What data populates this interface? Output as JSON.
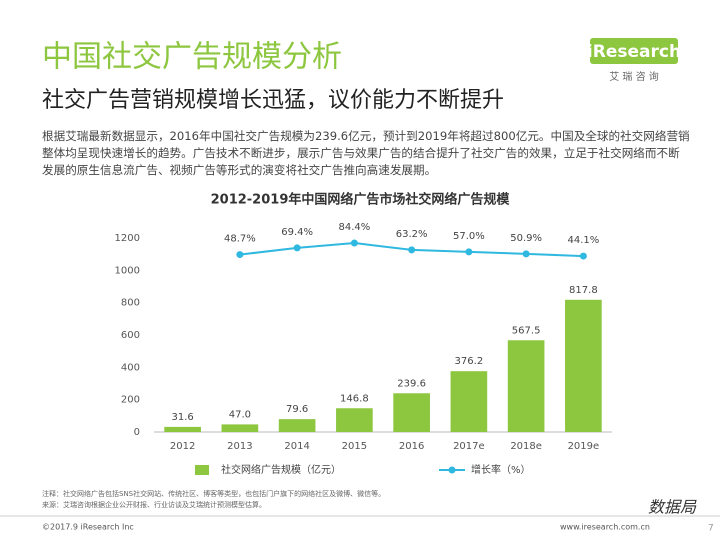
{
  "header": {
    "title": "中国社交广告规模分析",
    "subtitle": "社交广告营销规模增长迅猛，议价能力不断提升"
  },
  "logo": {
    "brand": "iResearch",
    "tagline": "艾 瑞 咨 询"
  },
  "body": "根据艾瑞最新数据显示，2016年中国社交广告规模为239.6亿元，预计到2019年将超过800亿元。中国及全球的社交网络营销整体均呈现快速增长的趋势。广告技术不断进步，展示广告与效果广告的结合提升了社交广告的效果，立足于社交网络而不断发展的原生信息流广告、视频广告等形式的演变将社交广告推向高速发展期。",
  "chart_data": {
    "type": "bar",
    "title": "2012-2019年中国网络广告市场社交网络广告规模",
    "categories": [
      "2012",
      "2013",
      "2014",
      "2015",
      "2016",
      "2017e",
      "2018e",
      "2019e"
    ],
    "series": [
      {
        "name": "社交网络广告规模（亿元）",
        "type": "bar",
        "color": "#8dc63f",
        "values": [
          31.6,
          47.0,
          79.6,
          146.8,
          239.6,
          376.2,
          567.5,
          817.8
        ],
        "value_labels": [
          "31.6",
          "47.0",
          "79.6",
          "146.8",
          "239.6",
          "376.2",
          "567.5",
          "817.8"
        ]
      },
      {
        "name": "增长率（%）",
        "type": "line",
        "axis": "y2",
        "color": "#2fb8e0",
        "values": [
          null,
          48.7,
          69.4,
          84.4,
          63.2,
          57.0,
          50.9,
          44.1
        ],
        "value_labels": [
          null,
          "48.7%",
          "69.4%",
          "84.4%",
          "63.2%",
          "57.0%",
          "50.9%",
          "44.1%"
        ]
      }
    ],
    "ylim": [
      0,
      1200
    ],
    "yticks": [
      0,
      200,
      400,
      600,
      800,
      1000,
      1200
    ],
    "y2lim": [
      -500,
      100
    ],
    "grid": false,
    "legend": "bottom"
  },
  "notes": [
    "注释：社交网络广告包括SNS社交网站、传统社区、博客等类型，也包括门户旗下的网络社区及微博、微信等。",
    "来源：艾瑞咨询根据企业公开财报、行业访谈及艾瑞统计预测模型估算。"
  ],
  "footer": {
    "copyright": "©2017.9 iResearch Inc",
    "website": "www.iresearch.com.cn",
    "page": "7",
    "watermark": "数据局"
  }
}
